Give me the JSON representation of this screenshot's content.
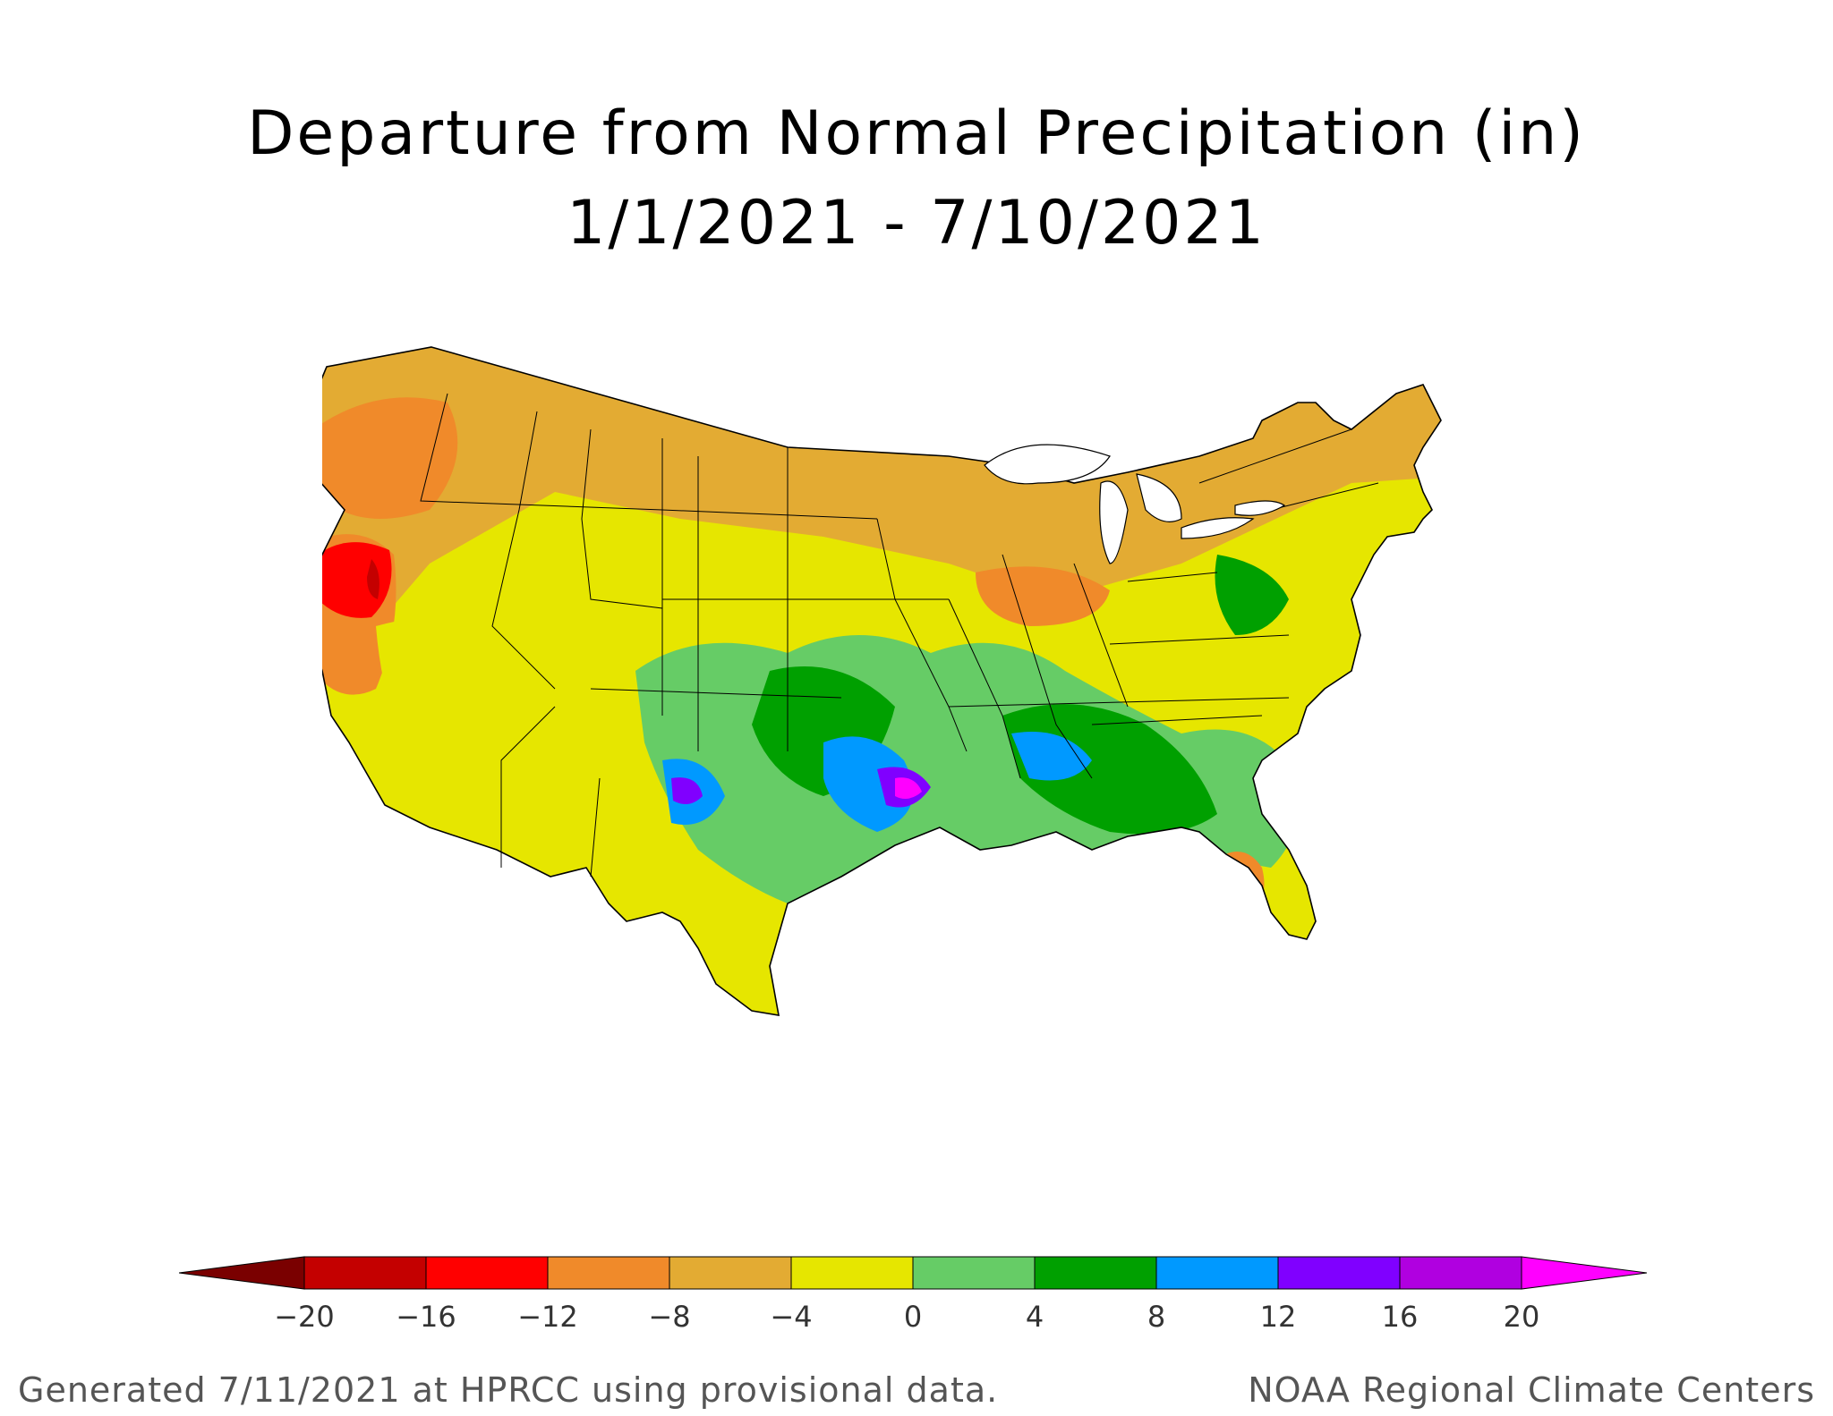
{
  "title": "Departure from Normal Precipitation (in)",
  "subtitle": "1/1/2021 - 7/10/2021",
  "legend": {
    "ticks": [
      "-20",
      "-16",
      "-12",
      "-8",
      "-4",
      "0",
      "4",
      "8",
      "12",
      "16",
      "20"
    ],
    "colors": [
      "#7a0000",
      "#c40000",
      "#ff0000",
      "#f08a2a",
      "#e3ab33",
      "#e6e600",
      "#66cc66",
      "#00a000",
      "#0099ff",
      "#8000ff",
      "#b000e0",
      "#ff00ff"
    ]
  },
  "footer": {
    "left": "Generated 7/11/2021 at HPRCC using provisional data.",
    "right": "NOAA Regional Climate Centers"
  }
}
